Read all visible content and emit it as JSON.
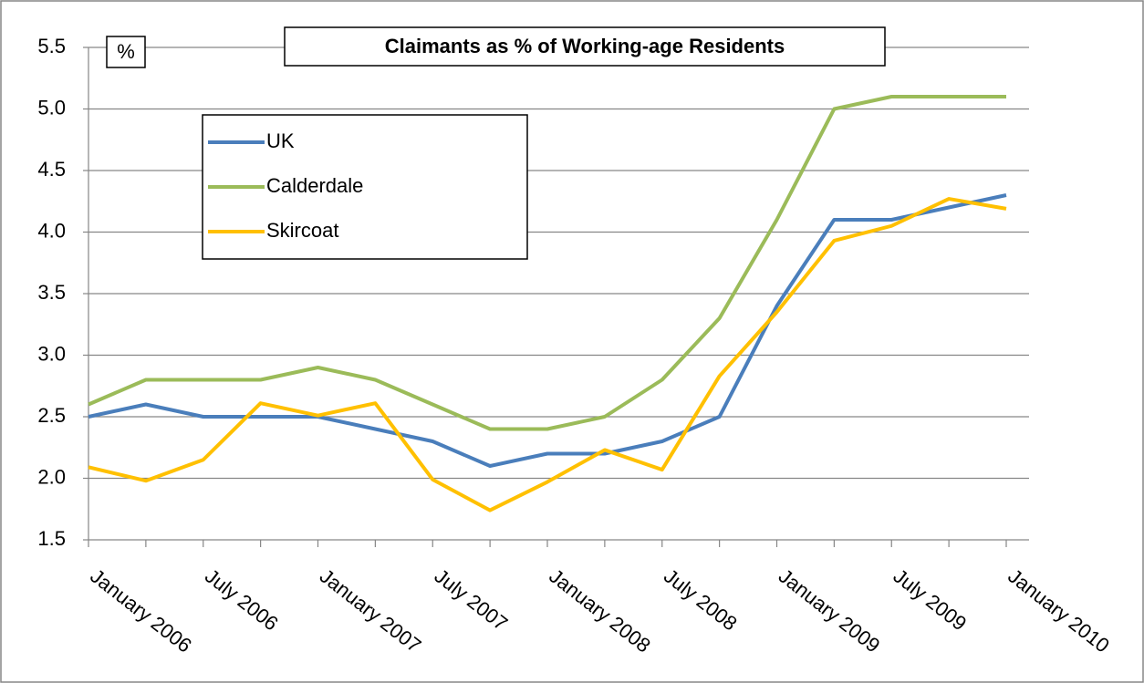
{
  "chart_data": {
    "type": "line",
    "title": "Claimants as % of Working-age Residents",
    "ylabel": "%",
    "categories": [
      "January 2006",
      null,
      "July 2006",
      null,
      "January 2007",
      null,
      "July 2007",
      null,
      "January 2008",
      null,
      "July 2008",
      null,
      "January 2009",
      null,
      "July 2009",
      null,
      "January 2010"
    ],
    "series": [
      {
        "name": "UK",
        "color": "#4a7ebb",
        "values": [
          2.5,
          2.6,
          2.5,
          2.5,
          2.5,
          2.4,
          2.3,
          2.1,
          2.2,
          2.2,
          2.3,
          2.5,
          3.4,
          4.1,
          4.1,
          4.2,
          4.3
        ]
      },
      {
        "name": "Calderdale",
        "color": "#9bbb59",
        "values": [
          2.6,
          2.8,
          2.8,
          2.8,
          2.9,
          2.8,
          2.6,
          2.4,
          2.4,
          2.5,
          2.8,
          3.3,
          4.1,
          5.0,
          5.1,
          5.1,
          5.1
        ]
      },
      {
        "name": "Skircoat",
        "color": "#ffc000",
        "values": [
          2.09,
          1.98,
          2.15,
          2.61,
          2.51,
          2.61,
          1.99,
          1.74,
          1.97,
          2.23,
          2.07,
          2.83,
          3.35,
          3.93,
          4.05,
          4.27,
          4.19
        ]
      }
    ],
    "ylim": [
      1.5,
      5.5
    ],
    "yticks": [
      1.5,
      {
        "value": 2,
        "label": "2.0"
      },
      2.5,
      {
        "value": 3,
        "label": "3.0"
      },
      3.5,
      {
        "value": 4,
        "label": "4.0"
      },
      4.5,
      {
        "value": 5,
        "label": "5.0"
      },
      5.5
    ],
    "grid": true
  }
}
